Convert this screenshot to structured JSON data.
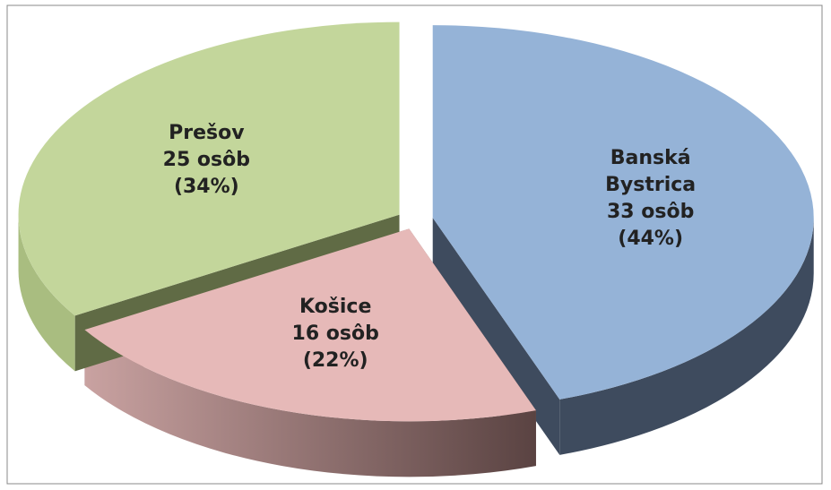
{
  "chart_data": {
    "type": "pie3d",
    "categories": [
      "Banská Bystrica",
      "Košice",
      "Prešov"
    ],
    "values": [
      33,
      16,
      25
    ],
    "value_labels": [
      "33 osôb",
      "16 osôb",
      "25 osôb"
    ],
    "percent_labels": [
      "(44%)",
      "(22%)",
      "(34%)"
    ],
    "colors": [
      "#95b3d7",
      "#e6b9b8",
      "#c3d69b"
    ],
    "side_colors": [
      "#3e4b5e",
      "#8f6b6a",
      "#606b45"
    ]
  }
}
